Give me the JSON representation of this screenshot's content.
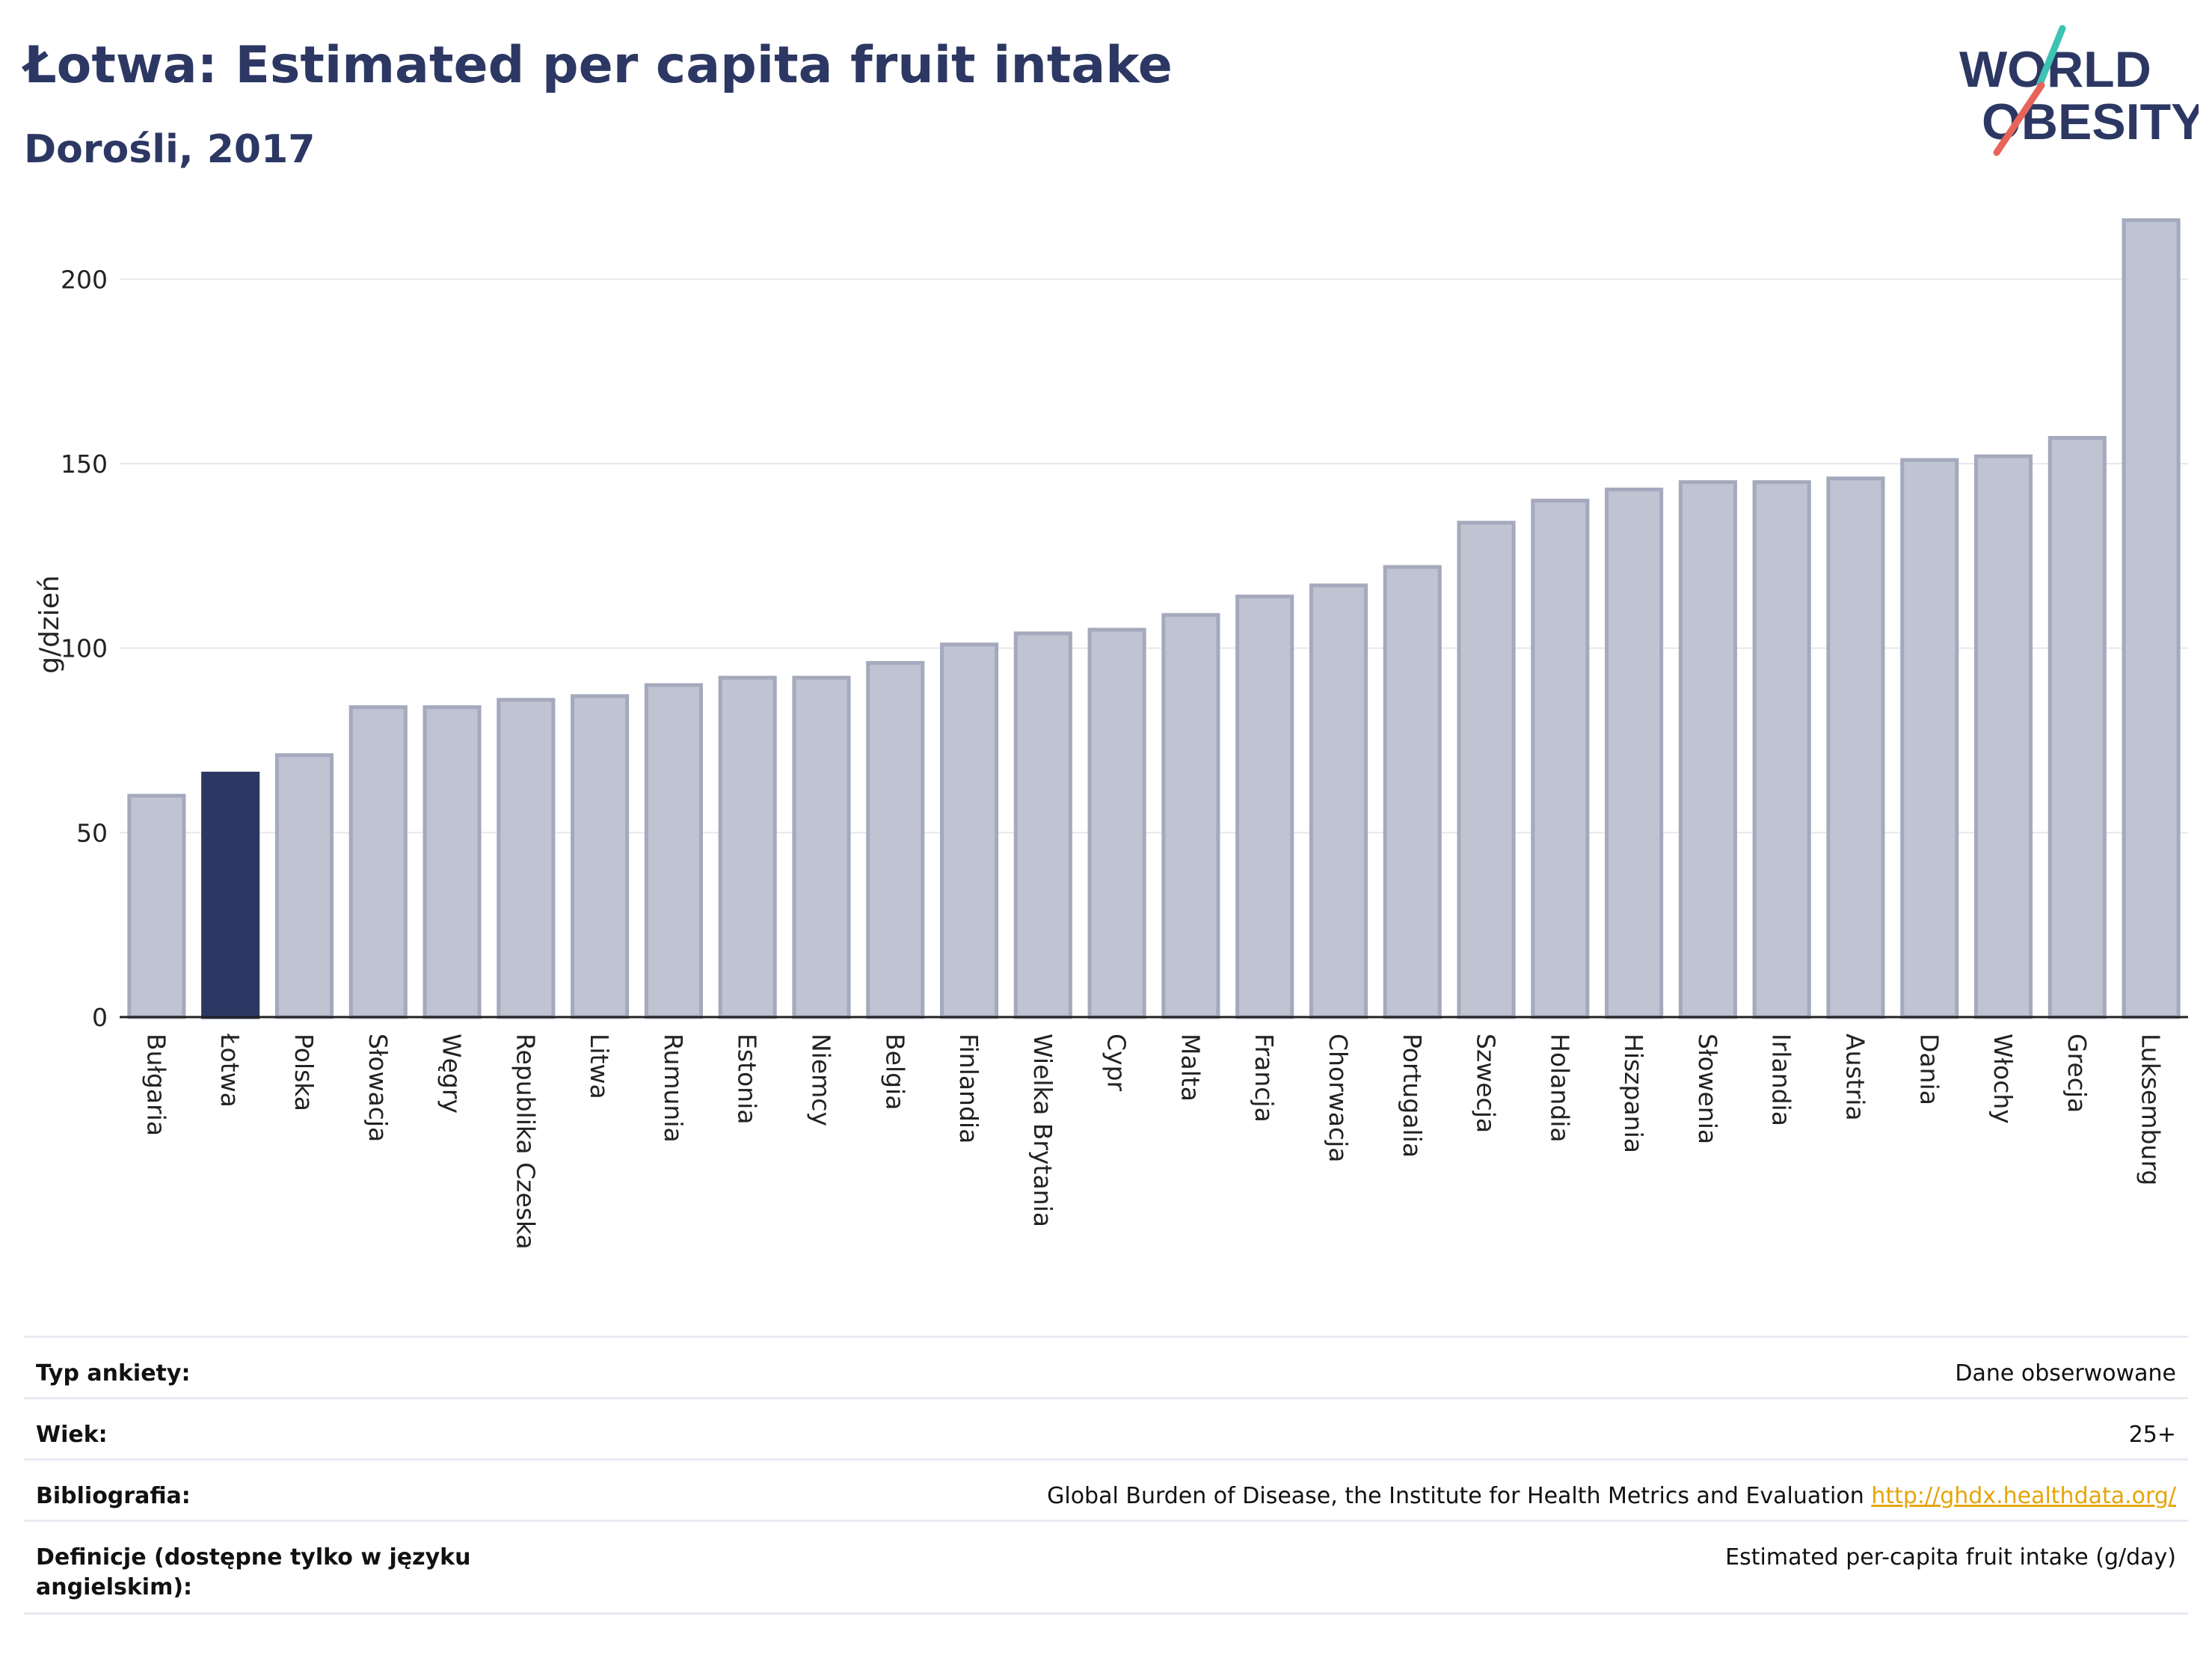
{
  "header": {
    "title": "Łotwa: Estimated per capita fruit intake",
    "subtitle": "Dorośli, 2017"
  },
  "logo": {
    "line1": "WORLD",
    "line2": "OBESITY",
    "colors": {
      "text": "#2c3863",
      "slash_red": "#e8645a",
      "slash_teal": "#3cc3b4"
    }
  },
  "colors": {
    "bar_default": "#c0c3d1",
    "bar_default_border": "#a4a9bd",
    "bar_highlight": "#2c3863",
    "title": "#2c3863",
    "link": "#e5a50a"
  },
  "chart_data": {
    "type": "bar",
    "title": "Łotwa: Estimated per capita fruit intake",
    "subtitle": "Dorośli, 2017",
    "xlabel": "",
    "ylabel": "g/dzień",
    "ylim": [
      0,
      225
    ],
    "yticks": [
      0,
      50,
      100,
      150,
      200
    ],
    "grid": true,
    "highlight": "Łotwa",
    "categories": [
      "Bułgaria",
      "Łotwa",
      "Polska",
      "Słowacja",
      "Węgry",
      "Republika Czeska",
      "Litwa",
      "Rumunia",
      "Estonia",
      "Niemcy",
      "Belgia",
      "Finlandia",
      "Wielka Brytania",
      "Cypr",
      "Malta",
      "Francja",
      "Chorwacja",
      "Portugalia",
      "Szwecja",
      "Holandia",
      "Hiszpania",
      "Słowenia",
      "Irlandia",
      "Austria",
      "Dania",
      "Włochy",
      "Grecja",
      "Luksemburg"
    ],
    "values": [
      60,
      66,
      71,
      84,
      84,
      86,
      87,
      90,
      92,
      92,
      96,
      101,
      104,
      105,
      109,
      114,
      117,
      122,
      134,
      140,
      143,
      145,
      145,
      146,
      151,
      152,
      157,
      216
    ]
  },
  "info_table": {
    "rows": [
      {
        "key": "Typ ankiety:",
        "value": "Dane obserwowane"
      },
      {
        "key": "Wiek:",
        "value": "25+"
      },
      {
        "key": "Bibliografia:",
        "value": "Global Burden of Disease, the Institute for Health Metrics and Evaluation",
        "link": "http://ghdx.healthdata.org/"
      },
      {
        "key": "Definicje (dostępne tylko w języku angielskim):",
        "value": "Estimated per-capita fruit intake (g/day)"
      }
    ]
  }
}
